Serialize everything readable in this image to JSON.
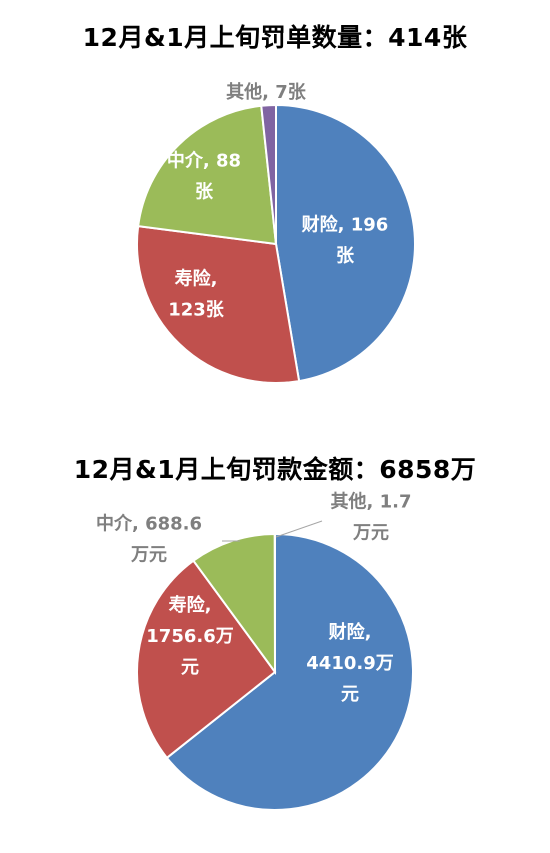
{
  "chart_data": [
    {
      "type": "pie",
      "title": "12月&1月上旬罚单数量：414张",
      "slices": [
        {
          "label_lines": [
            "财险, 196",
            "张"
          ],
          "value": 196,
          "color": "#4F81BD"
        },
        {
          "label_lines": [
            "寿险,",
            "123张"
          ],
          "value": 123,
          "color": "#C0504D"
        },
        {
          "label_lines": [
            "中介, 88",
            "张"
          ],
          "value": 88,
          "color": "#9BBB59"
        },
        {
          "label_lines": [
            "其他, 7张"
          ],
          "value": 7,
          "color": "#8064A2"
        }
      ]
    },
    {
      "type": "pie",
      "title": "12月&1月上旬罚款金额：6858万",
      "slices": [
        {
          "label_lines": [
            "财险,",
            "4410.9万",
            "元"
          ],
          "value": 4410.9,
          "color": "#4F81BD"
        },
        {
          "label_lines": [
            "寿险,",
            "1756.6万",
            "元"
          ],
          "value": 1756.6,
          "color": "#C0504D"
        },
        {
          "label_lines": [
            "中介, 688.6",
            "万元"
          ],
          "value": 688.6,
          "color": "#9BBB59"
        },
        {
          "label_lines": [
            "其他, 1.7",
            "万元"
          ],
          "value": 1.7,
          "color": "#8064A2"
        }
      ]
    }
  ]
}
